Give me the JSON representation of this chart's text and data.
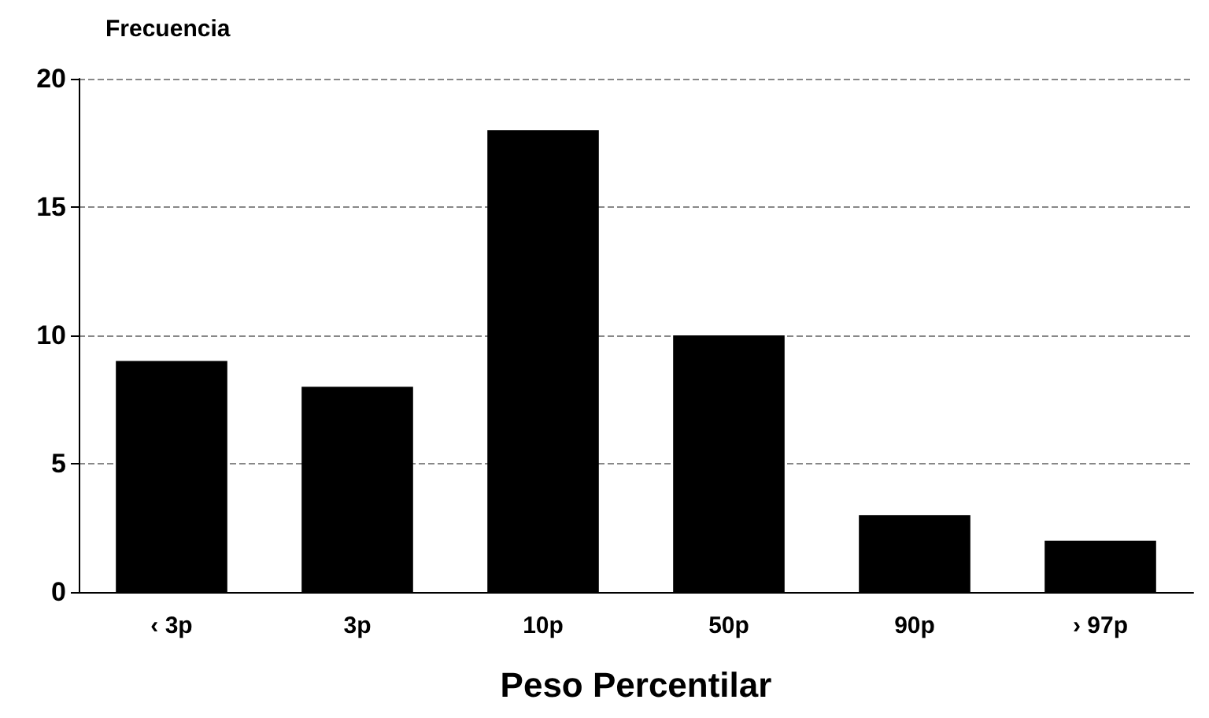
{
  "chart_data": {
    "type": "bar",
    "ylabel": "Frecuencia",
    "xlabel": "Peso Percentilar",
    "categories": [
      "‹ 3p",
      "3p",
      "10p",
      "50p",
      "90p",
      "› 97p"
    ],
    "values": [
      9,
      8,
      18,
      10,
      3,
      2
    ],
    "color": "#000000",
    "ylim": [
      0,
      20
    ],
    "yticks": [
      0,
      5,
      10,
      15,
      20
    ],
    "grid": "y",
    "line_style": "dashed"
  }
}
